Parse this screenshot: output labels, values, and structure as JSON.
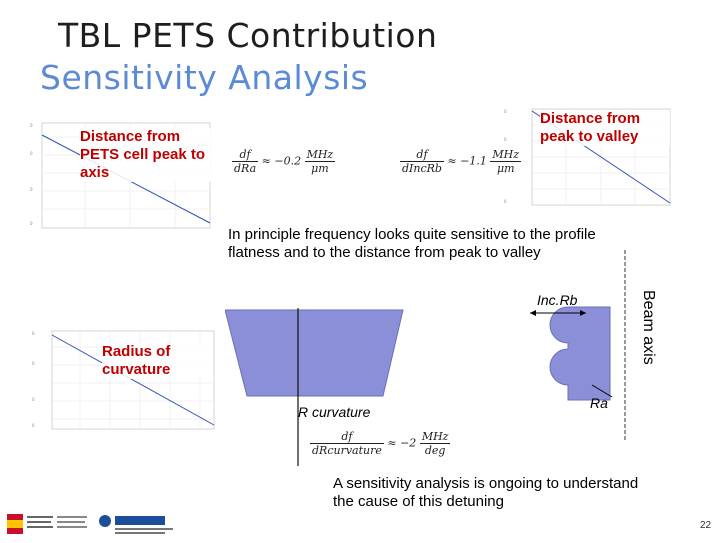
{
  "title": {
    "line1": "TBL PETS Contribution",
    "line2": "Sensitivity Analysis"
  },
  "labels": {
    "pets_cell": "Distance from PETS cell peak to axis",
    "peak_valley": "Distance from peak to valley",
    "radius": "Radius of curvature",
    "inc_rb": "Inc.Rb",
    "ra": "Ra",
    "r_curvature": "R curvature",
    "beam_axis": "Beam axis"
  },
  "formulas": {
    "f1": {
      "num": "df",
      "den": "dRa",
      "rhs": "≈ −0.2",
      "unit_num": "MHz",
      "unit_den": "μm"
    },
    "f2": {
      "num": "df",
      "den": "dIncRb",
      "rhs": "≈ −1.1",
      "unit_num": "MHz",
      "unit_den": "μm"
    },
    "f3": {
      "num": "df",
      "den": "dRcurvature",
      "rhs": "≈ −2",
      "unit_num": "MHz",
      "unit_den": "deg"
    }
  },
  "text": {
    "principle": "In principle frequency looks quite sensitive to the profile flatness and to the distance from peak to valley",
    "ongoing": "A sensitivity analysis is ongoing to understand the cause of this detuning"
  },
  "footer": {
    "slide_number": "22"
  },
  "colors": {
    "title_blue": "#5b8bd6",
    "label_red": "#c00000",
    "shape_purple": "#8a8fd8"
  }
}
